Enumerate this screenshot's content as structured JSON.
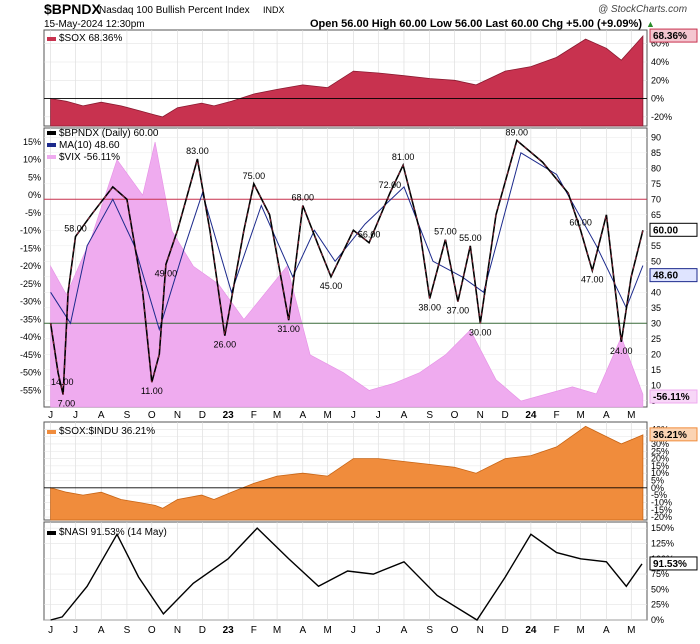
{
  "header": {
    "symbol": "$BPNDX",
    "description": "Nasdaq 100 Bullish Percent Index",
    "exchange": "INDX",
    "date": "15-May-2024 12:30pm",
    "ohlc": "Open 56.00   High 60.00   Low 56.00   Last 60.00   Chg +5.00 (+9.09%)",
    "up_marker": "▲",
    "brand": "@ StockCharts.com"
  },
  "colors": {
    "sox": "#c8324f",
    "bpndx": "#000000",
    "ma": "#1c2a8c",
    "vix": "#efabef",
    "ratio": "#f08c3c",
    "nasi": "#000000",
    "ref_red": "#c8324f",
    "ref_green": "#3a6b3a"
  },
  "chart_data": [
    {
      "type": "area",
      "legend": "$SOX 68.36%",
      "last_label": "68.36%",
      "y_ticks": [
        "60%",
        "40%",
        "20%",
        "0%",
        "-20%"
      ],
      "ylim": [
        -30,
        75
      ],
      "x": [
        "2022-06-01",
        "2022-06-20",
        "2022-07-10",
        "2022-08-01",
        "2022-08-25",
        "2022-09-15",
        "2022-10-05",
        "2022-10-14",
        "2022-11-01",
        "2022-11-30",
        "2022-12-15",
        "2023-01-05",
        "2023-02-01",
        "2023-03-01",
        "2023-04-01",
        "2023-05-01",
        "2023-06-01",
        "2023-07-01",
        "2023-08-01",
        "2023-09-01",
        "2023-10-01",
        "2023-10-27",
        "2023-12-01",
        "2024-01-01",
        "2024-02-01",
        "2024-03-07",
        "2024-04-01",
        "2024-04-19",
        "2024-05-15"
      ],
      "values": [
        0,
        -3,
        -8,
        -4,
        -8,
        -13,
        -18,
        -20,
        -10,
        -5,
        -8,
        -3,
        5,
        10,
        15,
        12,
        30,
        28,
        25,
        22,
        20,
        15,
        30,
        35,
        45,
        65,
        55,
        42,
        68.36
      ]
    },
    {
      "type": "line",
      "legend": [
        "$BPNDX (Daily) 60.00",
        "MA(10) 48.60",
        "$VIX -56.11%"
      ],
      "last_labels": [
        "60.00",
        "48.60",
        "-56.11%"
      ],
      "y_ticks_left": [
        "15%",
        "10%",
        "5%",
        "0%",
        "-5%",
        "-10%",
        "-15%",
        "-20%",
        "-25%",
        "-30%",
        "-35%",
        "-40%",
        "-45%",
        "-50%",
        "-55%"
      ],
      "y_ticks_right": [
        "90",
        "85",
        "80",
        "75",
        "70",
        "65",
        "60",
        "55",
        "50",
        "45",
        "40",
        "35",
        "30",
        "25",
        "20",
        "15",
        "10",
        "5"
      ],
      "ylim": [
        3,
        93
      ],
      "reference_lines": [
        70,
        30
      ],
      "annotations": [
        {
          "x": "2022-06-15",
          "value": 14.0,
          "text": "14.00"
        },
        {
          "x": "2022-06-20",
          "value": 7.0,
          "text": "7.00"
        },
        {
          "x": "2022-07-01",
          "value": 58.0,
          "text": "58.00"
        },
        {
          "x": "2022-10-01",
          "value": 11.0,
          "text": "11.00"
        },
        {
          "x": "2022-10-18",
          "value": 49.0,
          "text": "49.00"
        },
        {
          "x": "2022-11-25",
          "value": 83.0,
          "text": "83.00"
        },
        {
          "x": "2022-12-28",
          "value": 26.0,
          "text": "26.00"
        },
        {
          "x": "2023-02-01",
          "value": 75.0,
          "text": "75.00"
        },
        {
          "x": "2023-03-15",
          "value": 31.0,
          "text": "31.00"
        },
        {
          "x": "2023-04-01",
          "value": 68.0,
          "text": "68.00"
        },
        {
          "x": "2023-05-05",
          "value": 45.0,
          "text": "45.00"
        },
        {
          "x": "2023-06-20",
          "value": 56.0,
          "text": "56.00"
        },
        {
          "x": "2023-07-15",
          "value": 72.0,
          "text": "72.00"
        },
        {
          "x": "2023-07-31",
          "value": 81.0,
          "text": "81.00"
        },
        {
          "x": "2023-09-01",
          "value": 38.0,
          "text": "38.00"
        },
        {
          "x": "2023-09-20",
          "value": 57.0,
          "text": "57.00"
        },
        {
          "x": "2023-10-05",
          "value": 37.0,
          "text": "37.00"
        },
        {
          "x": "2023-10-20",
          "value": 55.0,
          "text": "55.00"
        },
        {
          "x": "2023-11-01",
          "value": 30.0,
          "text": "30.00"
        },
        {
          "x": "2023-12-15",
          "value": 89.0,
          "text": "89.00"
        },
        {
          "x": "2024-03-01",
          "value": 60.0,
          "text": "60.00"
        },
        {
          "x": "2024-03-15",
          "value": 47.0,
          "text": "47.00"
        },
        {
          "x": "2024-04-19",
          "value": 24.0,
          "text": "24.00"
        }
      ],
      "series": [
        {
          "name": "$BPNDX (Daily)",
          "x": [
            "2022-06-01",
            "2022-06-10",
            "2022-06-16",
            "2022-06-22",
            "2022-07-01",
            "2022-07-20",
            "2022-08-15",
            "2022-09-01",
            "2022-09-20",
            "2022-10-01",
            "2022-10-10",
            "2022-10-18",
            "2022-11-01",
            "2022-11-25",
            "2022-12-10",
            "2022-12-28",
            "2023-01-20",
            "2023-02-01",
            "2023-02-20",
            "2023-03-15",
            "2023-04-01",
            "2023-04-20",
            "2023-05-05",
            "2023-06-01",
            "2023-06-20",
            "2023-07-15",
            "2023-07-31",
            "2023-08-20",
            "2023-09-01",
            "2023-09-20",
            "2023-10-05",
            "2023-10-20",
            "2023-11-01",
            "2023-11-20",
            "2023-12-15",
            "2024-01-15",
            "2024-02-15",
            "2024-03-01",
            "2024-03-15",
            "2024-04-01",
            "2024-04-19",
            "2024-05-01",
            "2024-05-15"
          ],
          "values": [
            30,
            14,
            7,
            40,
            58,
            65,
            74,
            70,
            40,
            11,
            20,
            49,
            60,
            83,
            60,
            26,
            60,
            75,
            65,
            31,
            68,
            55,
            45,
            60,
            56,
            72,
            81,
            60,
            38,
            57,
            37,
            55,
            30,
            65,
            89,
            82,
            72,
            60,
            47,
            65,
            24,
            45,
            60
          ]
        },
        {
          "name": "MA(10)",
          "x": [
            "2022-06-01",
            "2022-06-25",
            "2022-07-15",
            "2022-08-15",
            "2022-09-10",
            "2022-10-10",
            "2022-11-10",
            "2022-12-01",
            "2023-01-05",
            "2023-02-10",
            "2023-03-20",
            "2023-04-15",
            "2023-05-10",
            "2023-06-15",
            "2023-08-01",
            "2023-09-05",
            "2023-10-10",
            "2023-11-05",
            "2023-12-20",
            "2024-02-01",
            "2024-03-20",
            "2024-04-25",
            "2024-05-15"
          ],
          "values": [
            40,
            30,
            55,
            70,
            55,
            28,
            55,
            72,
            40,
            68,
            45,
            60,
            50,
            62,
            74,
            50,
            45,
            40,
            85,
            78,
            55,
            35,
            48.6
          ]
        },
        {
          "name": "$VIX",
          "x": [
            "2022-06-01",
            "2022-06-20",
            "2022-07-20",
            "2022-08-20",
            "2022-09-20",
            "2022-10-05",
            "2022-10-25",
            "2022-11-20",
            "2022-12-20",
            "2023-01-20",
            "2023-03-13",
            "2023-04-10",
            "2023-05-20",
            "2023-06-20",
            "2023-07-20",
            "2023-08-20",
            "2023-09-20",
            "2023-10-20",
            "2023-11-20",
            "2023-12-20",
            "2024-01-20",
            "2024-02-20",
            "2024-03-20",
            "2024-04-19",
            "2024-05-15"
          ],
          "values": [
            -20,
            -28,
            -12,
            10,
            0,
            15,
            -10,
            -20,
            -25,
            -35,
            -20,
            -45,
            -50,
            -55,
            -53,
            -50,
            -45,
            -38,
            -52,
            -58,
            -56,
            -54,
            -56,
            -40,
            -56.11
          ]
        }
      ]
    },
    {
      "type": "area",
      "legend": "$SOX:$INDU 36.21%",
      "last_label": "36.21%",
      "y_ticks": [
        "40%",
        "35%",
        "30%",
        "25%",
        "20%",
        "15%",
        "10%",
        "5%",
        "0%",
        "-5%",
        "-10%",
        "-15%",
        "-20%"
      ],
      "ylim": [
        -22,
        45
      ],
      "x": [
        "2022-06-01",
        "2022-06-20",
        "2022-07-10",
        "2022-08-01",
        "2022-08-25",
        "2022-09-15",
        "2022-10-05",
        "2022-10-14",
        "2022-11-01",
        "2022-11-30",
        "2022-12-15",
        "2023-01-05",
        "2023-02-01",
        "2023-03-01",
        "2023-04-01",
        "2023-05-01",
        "2023-06-01",
        "2023-07-01",
        "2023-08-01",
        "2023-09-01",
        "2023-10-01",
        "2023-10-27",
        "2023-12-01",
        "2024-01-01",
        "2024-02-01",
        "2024-03-07",
        "2024-04-01",
        "2024-04-19",
        "2024-05-15"
      ],
      "values": [
        0,
        -3,
        -5,
        -3,
        -8,
        -10,
        -12,
        -14,
        -8,
        -5,
        -8,
        -3,
        3,
        8,
        10,
        8,
        20,
        20,
        18,
        16,
        14,
        10,
        20,
        22,
        28,
        42,
        35,
        30,
        36.21
      ]
    },
    {
      "type": "line",
      "legend": "$NASI 91.53% (14 May)",
      "last_label": "91.53%",
      "y_ticks": [
        "150%",
        "125%",
        "100%",
        "75%",
        "50%",
        "25%",
        "0%"
      ],
      "ylim": [
        0,
        160
      ],
      "x": [
        "2022-06-01",
        "2022-06-15",
        "2022-07-15",
        "2022-08-20",
        "2022-09-15",
        "2022-10-15",
        "2022-11-20",
        "2023-01-01",
        "2023-02-05",
        "2023-03-15",
        "2023-04-20",
        "2023-05-25",
        "2023-06-25",
        "2023-08-01",
        "2023-09-10",
        "2023-10-28",
        "2023-12-01",
        "2024-01-01",
        "2024-02-01",
        "2024-03-01",
        "2024-04-01",
        "2024-04-25",
        "2024-05-14"
      ],
      "values": [
        0,
        5,
        55,
        140,
        70,
        10,
        60,
        100,
        150,
        100,
        55,
        80,
        75,
        95,
        40,
        0,
        70,
        140,
        110,
        100,
        95,
        55,
        91.53
      ]
    }
  ],
  "x_axis": {
    "labels": [
      {
        "text": "J",
        "date": "2022-06-01"
      },
      {
        "text": "J",
        "date": "2022-07-01"
      },
      {
        "text": "A",
        "date": "2022-08-01"
      },
      {
        "text": "S",
        "date": "2022-09-01"
      },
      {
        "text": "O",
        "date": "2022-10-01"
      },
      {
        "text": "N",
        "date": "2022-11-01"
      },
      {
        "text": "D",
        "date": "2022-12-01"
      },
      {
        "text": "23",
        "date": "2023-01-01",
        "bold": true
      },
      {
        "text": "F",
        "date": "2023-02-01"
      },
      {
        "text": "M",
        "date": "2023-03-01"
      },
      {
        "text": "A",
        "date": "2023-04-01"
      },
      {
        "text": "M",
        "date": "2023-05-01"
      },
      {
        "text": "J",
        "date": "2023-06-01"
      },
      {
        "text": "J",
        "date": "2023-07-01"
      },
      {
        "text": "A",
        "date": "2023-08-01"
      },
      {
        "text": "S",
        "date": "2023-09-01"
      },
      {
        "text": "O",
        "date": "2023-10-01"
      },
      {
        "text": "N",
        "date": "2023-11-01"
      },
      {
        "text": "D",
        "date": "2023-12-01"
      },
      {
        "text": "24",
        "date": "2024-01-01",
        "bold": true
      },
      {
        "text": "F",
        "date": "2024-02-01"
      },
      {
        "text": "M",
        "date": "2024-03-01"
      },
      {
        "text": "A",
        "date": "2024-04-01"
      },
      {
        "text": "M",
        "date": "2024-05-01"
      }
    ]
  }
}
